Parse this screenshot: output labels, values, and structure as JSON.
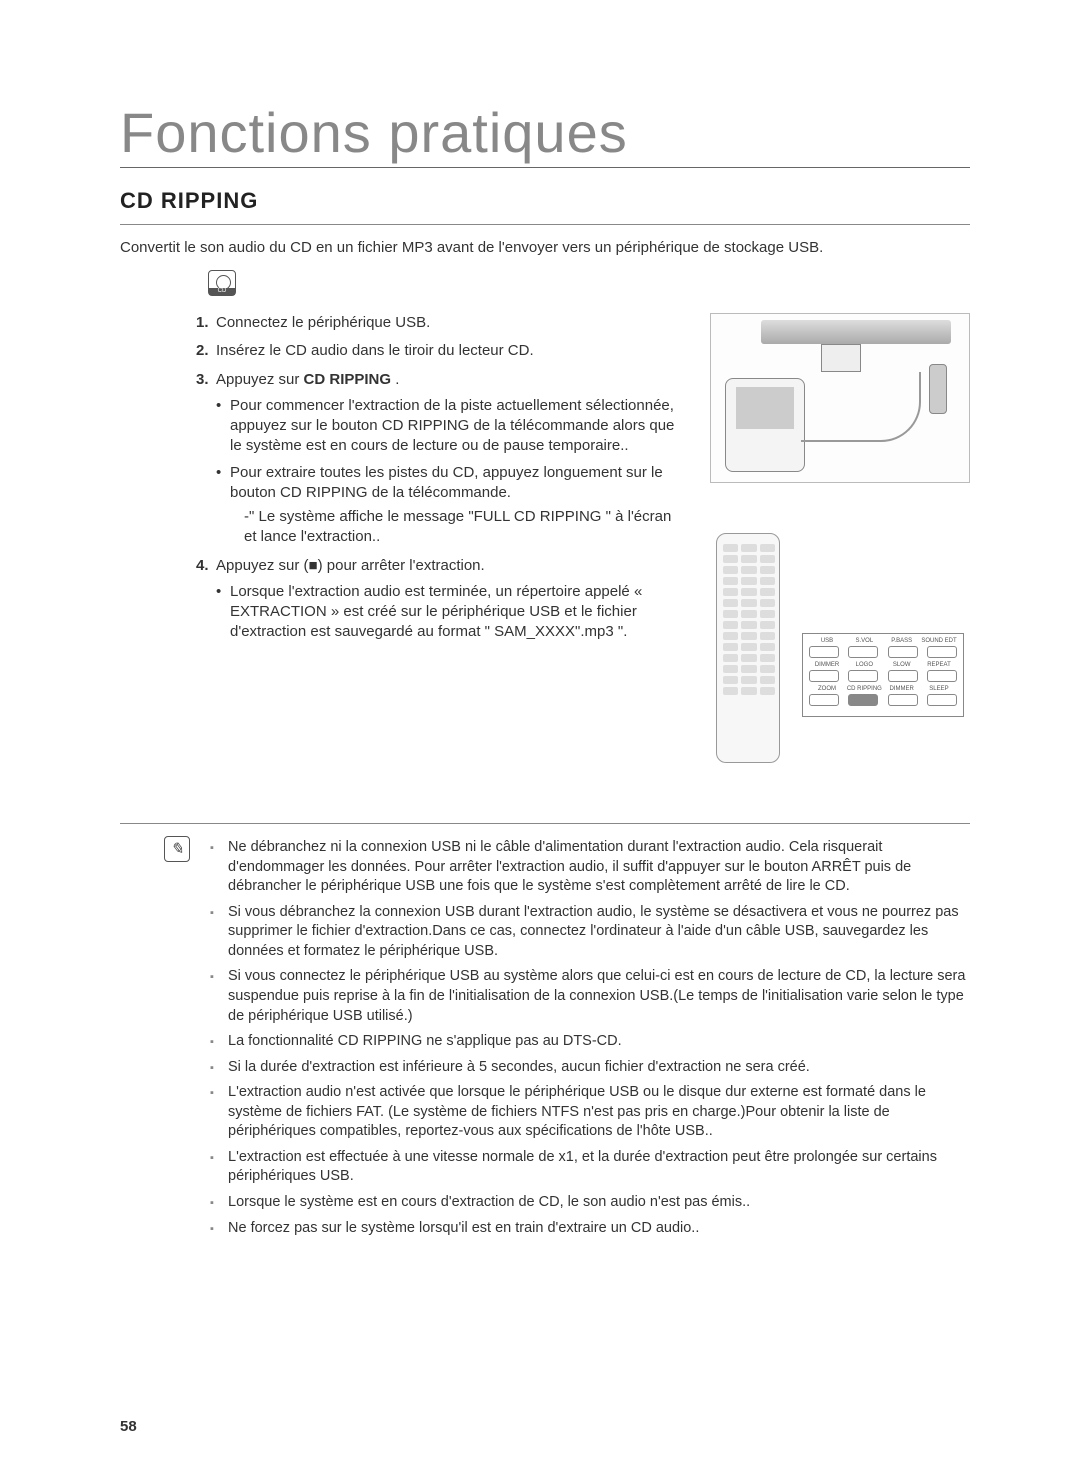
{
  "title": "Fonctions pratiques",
  "section": {
    "heading": "CD RIPPING",
    "intro": "Convertit le son audio du CD en un fichier MP3 avant de l'envoyer vers un périphérique de stockage USB."
  },
  "steps": [
    {
      "num": "1.",
      "text": "Connectez le périphérique USB."
    },
    {
      "num": "2.",
      "text": " Insérez le CD audio dans le tiroir du lecteur CD."
    },
    {
      "num": "3.",
      "text_prefix": "Appuyez sur ",
      "text_bold": "CD RIPPING",
      "text_suffix": " .",
      "bullets": [
        "Pour commencer l'extraction de la piste actuellement sélectionnée, appuyez sur le bouton CD RIPPING de la télécommande alors que le système est en cours de lecture ou de pause temporaire..",
        "Pour extraire toutes les pistes du CD, appuyez longuement sur le bouton CD RIPPING de la télécommande."
      ],
      "subdash": "-\" Le système affiche le message \"FULL CD RIPPING \" à l'écran et lance l'extraction.."
    },
    {
      "num": "4.",
      "text": "Appuyez sur (■) pour arrêter l'extraction.",
      "bullets": [
        "Lorsque l'extraction audio est terminée, un répertoire appelé « EXTRACTION » est créé sur le périphérique USB et le fichier d'extraction est sauvegardé au format \" SAM_XXXX\".mp3 \"."
      ]
    }
  ],
  "callout": {
    "row1": [
      "USB",
      "S.VOL",
      "P.BASS",
      "SOUND EDT"
    ],
    "row2": [
      "DIMMER",
      "LOGO",
      "SLOW",
      "REPEAT"
    ],
    "row3": [
      "ZOOM",
      "CD RIPPING",
      "DIMMER",
      "SLEEP"
    ]
  },
  "notes": [
    "Ne débranchez ni la connexion USB ni le câble d'alimentation durant l'extraction audio. Cela risquerait d'endommager les données. Pour arrêter l'extraction audio, il suffit d'appuyer sur le bouton ARRÊT puis de débrancher le périphérique USB une fois que le système s'est complètement arrêté de lire le CD.",
    "Si vous débranchez la connexion USB durant l'extraction audio, le système se désactivera et vous ne pourrez pas supprimer le fichier d'extraction.Dans ce cas, connectez l'ordinateur à l'aide d'un câble USB, sauvegardez les données et formatez le périphérique USB.",
    "Si vous connectez le périphérique USB au système alors que celui-ci est en cours de lecture de CD, la lecture sera suspendue puis reprise à la fin de l'initialisation de la connexion USB.(Le temps de l'initialisation varie selon le type de périphérique USB utilisé.)",
    "La fonctionnalité CD RIPPING ne s'applique pas au DTS-CD.",
    "Si la durée d'extraction est inférieure à 5 secondes, aucun fichier d'extraction ne sera créé.",
    "L'extraction audio n'est activée que lorsque le périphérique USB ou le disque dur externe est formaté dans le système de fichiers FAT. (Le système de fichiers NTFS n'est pas pris en charge.)Pour obtenir la liste de périphériques compatibles, reportez-vous aux spécifications de l'hôte USB..",
    "L'extraction est effectuée à une vitesse normale de x1, et la durée d'extraction peut être prolongée sur certains périphériques USB.",
    "Lorsque le système est en cours d'extraction de CD, le son audio n'est pas émis..",
    "Ne forcez pas sur le système lorsqu'il est en train d'extraire un CD audio.."
  ],
  "page_number": "58",
  "colors": {
    "title": "#888888",
    "text": "#333333",
    "rule": "#888888",
    "background": "#ffffff"
  },
  "typography": {
    "title_fontsize_pt": 42,
    "heading_fontsize_pt": 17,
    "body_fontsize_pt": 11,
    "note_fontsize_pt": 11
  }
}
